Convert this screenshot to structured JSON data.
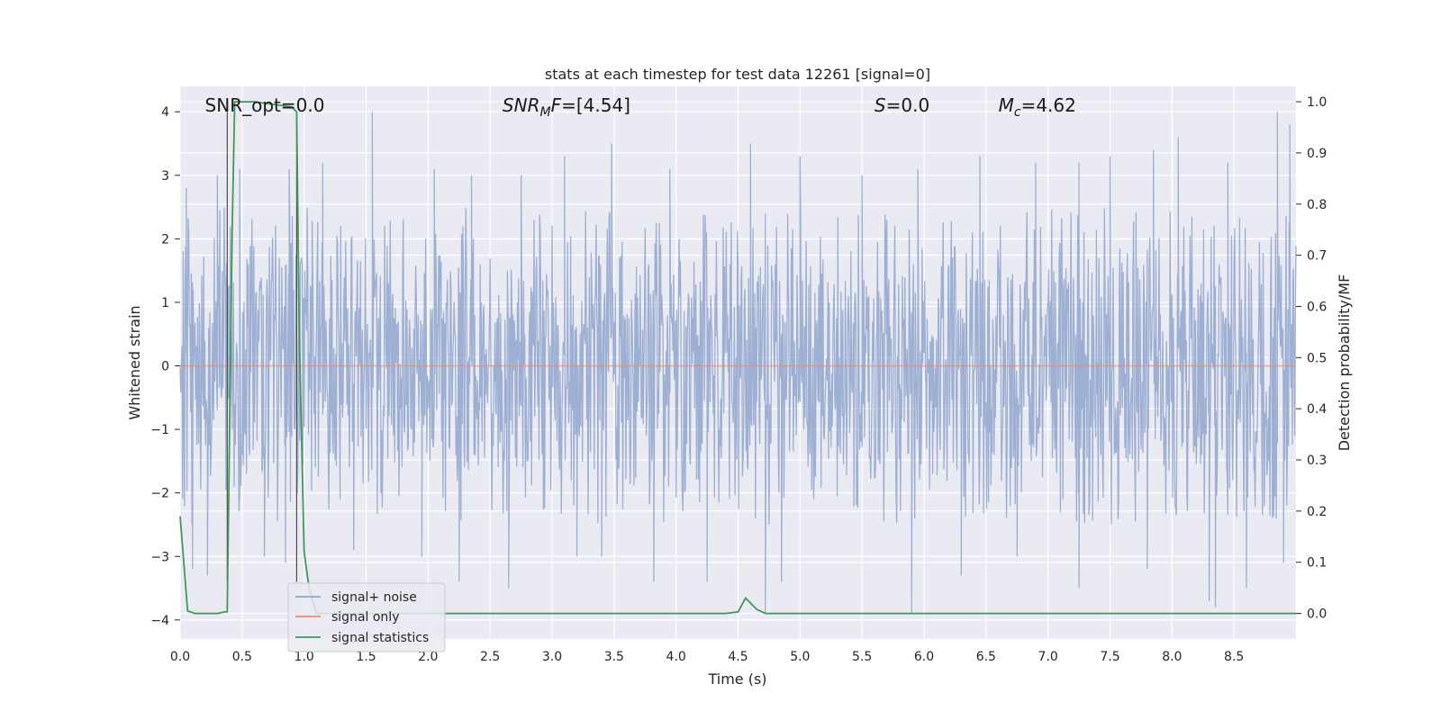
{
  "chart_data": {
    "type": "line",
    "title": "stats at each timestep for test data 12261 [signal=0]",
    "xlabel": "Time (s)",
    "ylabel": "Whitened strain",
    "ylabel_right": "Detection probability/MF",
    "xlim": [
      0.0,
      9.0
    ],
    "ylim": [
      -4.3,
      4.4
    ],
    "ylim_right": [
      -0.05,
      1.03
    ],
    "x_ticks": [
      "0.0",
      "0.5",
      "1.0",
      "1.5",
      "2.0",
      "2.5",
      "3.0",
      "3.5",
      "4.0",
      "4.5",
      "5.0",
      "5.5",
      "6.0",
      "6.5",
      "7.0",
      "7.5",
      "8.0",
      "8.5"
    ],
    "y_ticks": [
      "−4",
      "−3",
      "−2",
      "−1",
      "0",
      "1",
      "2",
      "3",
      "4"
    ],
    "y_ticks_right": [
      "0.0",
      "0.1",
      "0.2",
      "0.3",
      "0.4",
      "0.5",
      "0.6",
      "0.7",
      "0.8",
      "0.9",
      "1.0"
    ],
    "grid": true,
    "legend_position": "lower-left",
    "annotations": [
      {
        "key": "snr_opt",
        "label": "SNR_opt=0.0",
        "x": 0.2
      },
      {
        "key": "snr_mf",
        "label": "SNR_MF=[4.54]",
        "x": 2.6
      },
      {
        "key": "s",
        "label": "S=0.0",
        "x": 5.6
      },
      {
        "key": "mc",
        "label": "M_c=4.62",
        "x": 6.6
      }
    ],
    "vlines": [
      0.38,
      0.94
    ],
    "series": [
      {
        "name": "signal+ noise",
        "color": "#8fa4cc",
        "axis": "left",
        "kind": "noise",
        "envelope": {
          "typical_abs": 1.6,
          "peak_max": 4.0,
          "peak_min": -3.8
        },
        "spikes_up": [
          [
            0.05,
            2.8
          ],
          [
            0.3,
            3.0
          ],
          [
            0.48,
            3.1
          ],
          [
            0.88,
            3.1
          ],
          [
            1.15,
            3.2
          ],
          [
            1.55,
            4.0
          ],
          [
            2.05,
            3.1
          ],
          [
            2.35,
            3.0
          ],
          [
            2.75,
            3.0
          ],
          [
            3.1,
            3.3
          ],
          [
            3.48,
            3.5
          ],
          [
            3.95,
            3.1
          ],
          [
            4.6,
            3.5
          ],
          [
            5.0,
            3.3
          ],
          [
            5.5,
            3.0
          ],
          [
            5.95,
            3.1
          ],
          [
            6.45,
            3.3
          ],
          [
            6.9,
            3.2
          ],
          [
            7.25,
            3.2
          ],
          [
            7.5,
            3.3
          ],
          [
            7.85,
            3.4
          ],
          [
            8.05,
            3.6
          ],
          [
            8.45,
            3.2
          ],
          [
            8.85,
            4.0
          ],
          [
            8.95,
            3.8
          ]
        ],
        "spikes_down": [
          [
            0.1,
            -3.2
          ],
          [
            0.22,
            -3.3
          ],
          [
            0.68,
            -3.0
          ],
          [
            0.85,
            -3.1
          ],
          [
            1.4,
            -2.9
          ],
          [
            1.95,
            -3.0
          ],
          [
            2.25,
            -3.4
          ],
          [
            2.65,
            -3.5
          ],
          [
            3.2,
            -3.0
          ],
          [
            3.4,
            -3.0
          ],
          [
            3.82,
            -3.4
          ],
          [
            4.25,
            -3.4
          ],
          [
            4.72,
            -3.9
          ],
          [
            4.85,
            -3.4
          ],
          [
            5.9,
            -3.9
          ],
          [
            6.3,
            -3.3
          ],
          [
            6.75,
            -3.0
          ],
          [
            7.25,
            -3.5
          ],
          [
            7.8,
            -3.2
          ],
          [
            8.3,
            -3.7
          ],
          [
            8.35,
            -3.8
          ],
          [
            8.6,
            -3.5
          ],
          [
            8.9,
            -3.1
          ]
        ]
      },
      {
        "name": "signal only",
        "color": "#e38f6b",
        "axis": "left",
        "x": [
          0.0,
          9.0
        ],
        "y": [
          0.0,
          0.0
        ]
      },
      {
        "name": "signal statistics",
        "color": "#3f9a55",
        "axis": "right",
        "x": [
          0.0,
          0.06,
          0.12,
          0.3,
          0.36,
          0.38,
          0.42,
          0.44,
          0.5,
          0.6,
          0.9,
          0.94,
          0.96,
          1.0,
          1.04,
          1.1,
          4.4,
          4.5,
          4.56,
          4.65,
          4.72,
          9.0
        ],
        "y": [
          0.19,
          0.005,
          0.0,
          0.0,
          0.003,
          0.003,
          0.75,
          1.0,
          1.0,
          1.0,
          0.99,
          0.98,
          0.55,
          0.12,
          0.05,
          0.0,
          0.0,
          0.003,
          0.03,
          0.008,
          0.0,
          0.0
        ]
      }
    ]
  }
}
